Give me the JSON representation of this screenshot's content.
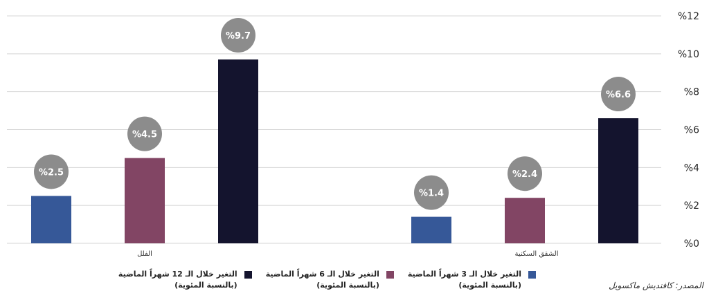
{
  "chart_data": {
    "type": "bar",
    "yaxis_side": "right",
    "ylim": [
      0,
      12
    ],
    "yticks": [
      0,
      2,
      4,
      6,
      8,
      10,
      12
    ],
    "ytick_labels": [
      "%0",
      "%2",
      "%4",
      "%6",
      "%8",
      "%10",
      "%12"
    ],
    "categories": [
      "الشقق السكنية",
      "الفلل"
    ],
    "series": [
      {
        "name": "التغير خلال الـ 12 شهراً الماضية (بالنسبة المئوية)",
        "color": "#14142e",
        "values": [
          6.6,
          9.7
        ],
        "labels": [
          "%6.6",
          "%9.7"
        ]
      },
      {
        "name": "التغير خلال الـ 6 شهراً الماضية (بالنسبة المئوية)",
        "color": "#824564",
        "values": [
          2.4,
          4.5
        ],
        "labels": [
          "%2.4",
          "%4.5"
        ]
      },
      {
        "name": "التغير خلال الـ 3 شهراً الماضية (بالنسبة المئوية)",
        "color": "#365898",
        "values": [
          1.4,
          2.5
        ],
        "labels": [
          "%1.4",
          "%2.5"
        ]
      }
    ],
    "label_badge_color": "#8c8c8c",
    "grid_color": "#d4d4d4"
  },
  "legend": [
    {
      "line1": "التغير خلال الـ 12 شهراً الماضية",
      "line2": "(بالنسبة المئوية)",
      "color": "#14142e"
    },
    {
      "line1": "التغير خلال الـ 6 شهراً الماضية",
      "line2": "(بالنسبة المئوية)",
      "color": "#824564"
    },
    {
      "line1": "التغير خلال الـ 3 شهراً الماضية",
      "line2": "(بالنسبة المئوية)",
      "color": "#365898"
    }
  ],
  "source": "المصدر: كافنديش ماكسويل"
}
